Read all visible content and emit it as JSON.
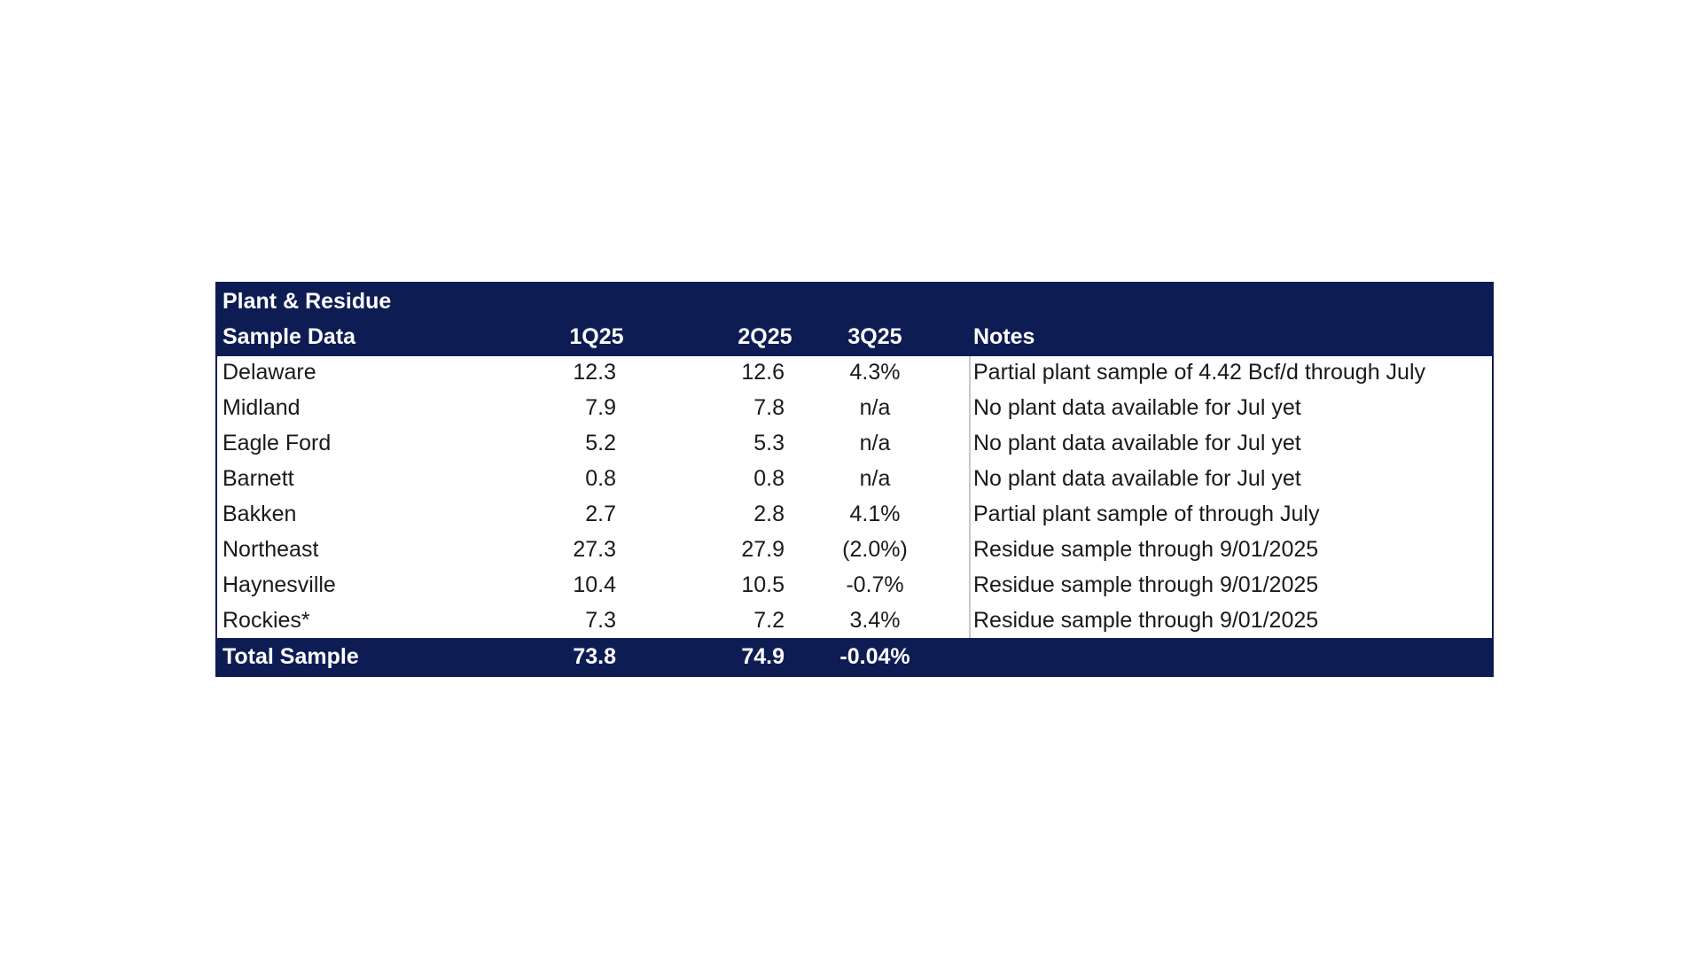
{
  "table": {
    "header": {
      "title_line1": "Plant & Residue",
      "title_line2": "Sample Data",
      "col_q1": "1Q25",
      "col_q2": "2Q25",
      "col_q3": "3Q25",
      "col_notes": "Notes"
    },
    "rows": [
      {
        "region": "Delaware",
        "q1": "12.3",
        "q2": "12.6",
        "q3": "4.3%",
        "note": "Partial plant sample of 4.42 Bcf/d through July"
      },
      {
        "region": "Midland",
        "q1": "7.9",
        "q2": "7.8",
        "q3": "n/a",
        "note": "No plant data available for Jul yet"
      },
      {
        "region": "Eagle Ford",
        "q1": "5.2",
        "q2": "5.3",
        "q3": "n/a",
        "note": "No plant data available for Jul yet"
      },
      {
        "region": "Barnett",
        "q1": "0.8",
        "q2": "0.8",
        "q3": "n/a",
        "note": "No plant data available for Jul yet"
      },
      {
        "region": "Bakken",
        "q1": "2.7",
        "q2": "2.8",
        "q3": "4.1%",
        "note": "Partial plant sample of through July"
      },
      {
        "region": "Northeast",
        "q1": "27.3",
        "q2": "27.9",
        "q3": "(2.0%)",
        "note": "Residue sample through 9/01/2025"
      },
      {
        "region": "Haynesville",
        "q1": "10.4",
        "q2": "10.5",
        "q3": "-0.7%",
        "note": "Residue sample through 9/01/2025"
      },
      {
        "region": "Rockies*",
        "q1": "7.3",
        "q2": "7.2",
        "q3": "3.4%",
        "note": "Residue sample through 9/01/2025"
      }
    ],
    "total": {
      "label": "Total Sample",
      "q1": "73.8",
      "q2": "74.9",
      "q3": "-0.04%"
    }
  },
  "colors": {
    "header_bg": "#0e1c54",
    "header_text": "#ffffff",
    "body_text": "#1a1a1a"
  }
}
